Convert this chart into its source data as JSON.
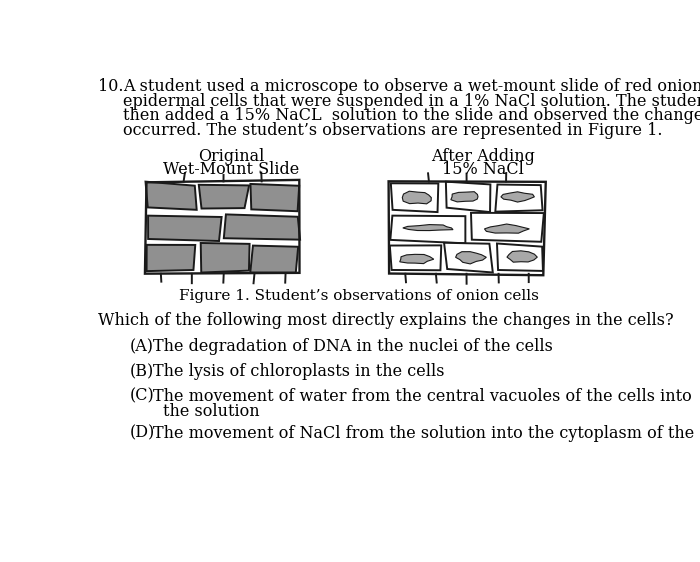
{
  "background_color": "#ffffff",
  "question_number": "10.",
  "question_text_lines": [
    "A student used a microscope to observe a wet-mount slide of red onion",
    "epidermal cells that were suspended in a 1% NaCl solution. The student",
    "then added a 15% NaCL  solution to the slide and observed the changes that",
    "occurred. The student’s observations are represented in Figure 1."
  ],
  "label_left_line1": "Original",
  "label_left_line2": "Wet-Mount Slide",
  "label_right_line1": "After Adding",
  "label_right_line2": "15% NaCl",
  "figure_caption": "Figure 1. Student’s observations of onion cells",
  "question_stem": "Which of the following most directly explains the changes in the cells?",
  "choice_A_label": "(A)",
  "choice_A_text": "The degradation of DNA in the nuclei of the cells",
  "choice_B_label": "(B)",
  "choice_B_text": "The lysis of chloroplasts in the cells",
  "choice_C_label": "(C)",
  "choice_C_text1": "The movement of water from the central vacuoles of the cells into",
  "choice_C_text2": "the solution",
  "choice_D_label": "(D)",
  "choice_D_text": "The movement of NaCl from the solution into the cytoplasm of the cells",
  "cell_color_filled": "#909090",
  "cell_color_shrunken": "#a8a8a8",
  "cell_outline": "#1a1a1a",
  "text_color": "#000000",
  "font_family": "serif",
  "font_size": 11.5
}
